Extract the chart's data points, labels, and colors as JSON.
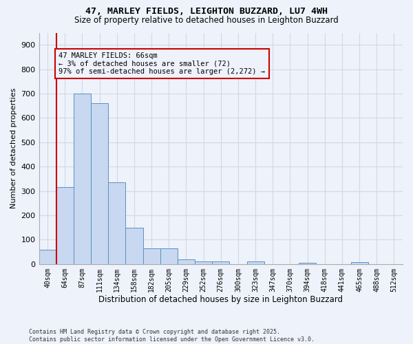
{
  "title": "47, MARLEY FIELDS, LEIGHTON BUZZARD, LU7 4WH",
  "subtitle": "Size of property relative to detached houses in Leighton Buzzard",
  "xlabel": "Distribution of detached houses by size in Leighton Buzzard",
  "ylabel": "Number of detached properties",
  "bar_color": "#c8d8f0",
  "bar_edge_color": "#5a8fc0",
  "grid_color": "#d0d8e8",
  "annotation_line_color": "#cc0000",
  "annotation_box_color": "#cc0000",
  "annotation_text": "47 MARLEY FIELDS: 66sqm\n← 3% of detached houses are smaller (72)\n97% of semi-detached houses are larger (2,272) →",
  "categories": [
    "40sqm",
    "64sqm",
    "87sqm",
    "111sqm",
    "134sqm",
    "158sqm",
    "182sqm",
    "205sqm",
    "229sqm",
    "252sqm",
    "276sqm",
    "300sqm",
    "323sqm",
    "347sqm",
    "370sqm",
    "394sqm",
    "418sqm",
    "441sqm",
    "465sqm",
    "488sqm",
    "512sqm"
  ],
  "values": [
    60,
    315,
    700,
    660,
    335,
    150,
    65,
    65,
    20,
    12,
    12,
    0,
    10,
    0,
    0,
    5,
    0,
    0,
    8,
    0,
    0
  ],
  "ylim": [
    0,
    950
  ],
  "yticks": [
    0,
    100,
    200,
    300,
    400,
    500,
    600,
    700,
    800,
    900
  ],
  "footer": "Contains HM Land Registry data © Crown copyright and database right 2025.\nContains public sector information licensed under the Open Government Licence v3.0.",
  "bg_color": "#eef2fb"
}
